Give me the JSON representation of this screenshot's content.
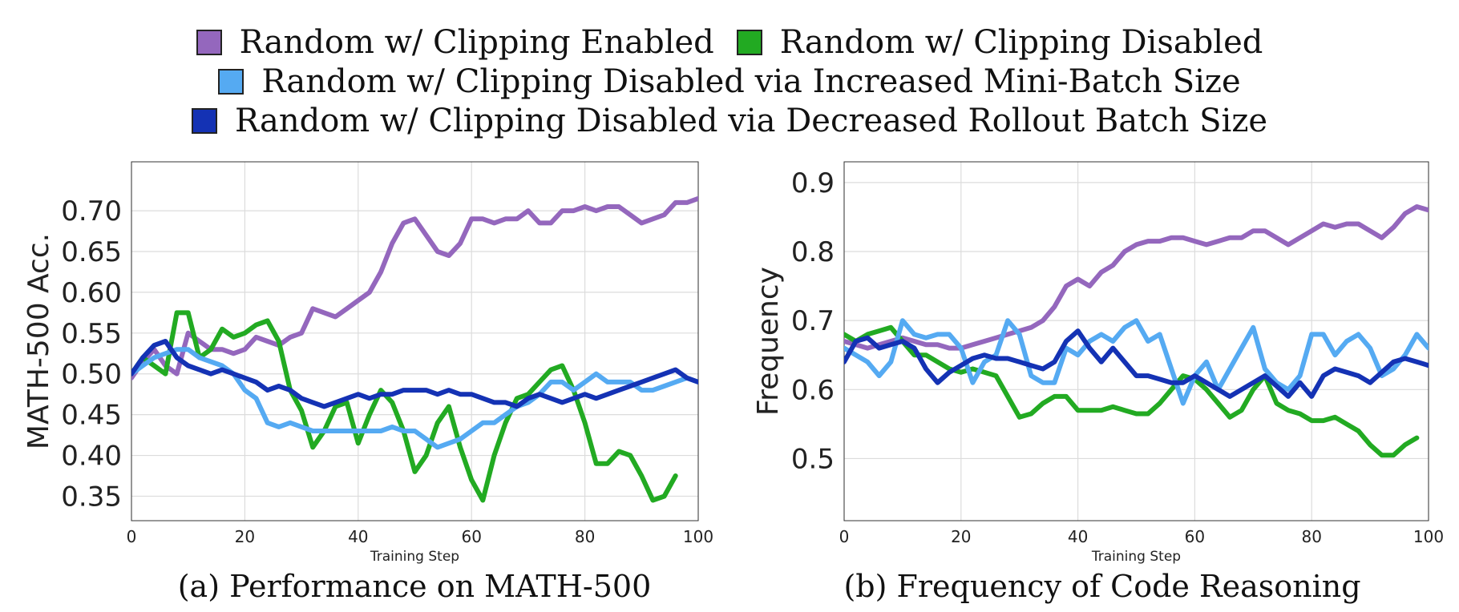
{
  "legend": [
    {
      "label": "Random w/ Clipping Enabled",
      "color": "#9467bd"
    },
    {
      "label": "Random w/ Clipping Disabled",
      "color": "#22aa22"
    },
    {
      "label": "Random w/ Clipping Disabled via Increased Mini-Batch Size",
      "color": "#55aaf2"
    },
    {
      "label": "Random w/ Clipping Disabled via Decreased Rollout Batch Size",
      "color": "#1432b4"
    }
  ],
  "captions": {
    "a": "(a) Performance on MATH-500",
    "b": "(b) Frequency of Code Reasoning"
  },
  "chart_data": [
    {
      "type": "line",
      "xlabel": "Training Step",
      "ylabel": "MATH-500 Acc.",
      "xlim": [
        0,
        100
      ],
      "ylim": [
        0.32,
        0.76
      ],
      "xticks": [
        0,
        20,
        40,
        60,
        80,
        100
      ],
      "yticks": [
        0.35,
        0.4,
        0.45,
        0.5,
        0.55,
        0.6,
        0.65,
        0.7
      ],
      "ytick_labels": [
        "0.35",
        "0.40",
        "0.45",
        "0.50",
        "0.55",
        "0.60",
        "0.65",
        "0.70"
      ],
      "grid": true,
      "series": [
        {
          "name": "Random w/ Clipping Enabled",
          "color": "#9467bd",
          "x": [
            0,
            2,
            4,
            6,
            8,
            10,
            12,
            14,
            16,
            18,
            20,
            22,
            24,
            26,
            28,
            30,
            32,
            34,
            36,
            38,
            40,
            42,
            44,
            46,
            48,
            50,
            52,
            54,
            56,
            58,
            60,
            62,
            64,
            66,
            68,
            70,
            72,
            74,
            76,
            78,
            80,
            82,
            84,
            86,
            88,
            90,
            92,
            94,
            96,
            98,
            100
          ],
          "values": [
            0.495,
            0.515,
            0.53,
            0.51,
            0.5,
            0.55,
            0.54,
            0.53,
            0.53,
            0.525,
            0.53,
            0.545,
            0.54,
            0.535,
            0.545,
            0.55,
            0.58,
            0.575,
            0.57,
            0.58,
            0.59,
            0.6,
            0.625,
            0.66,
            0.685,
            0.69,
            0.67,
            0.65,
            0.645,
            0.66,
            0.69,
            0.69,
            0.685,
            0.69,
            0.69,
            0.7,
            0.685,
            0.685,
            0.7,
            0.7,
            0.705,
            0.7,
            0.705,
            0.705,
            0.695,
            0.685,
            0.69,
            0.695,
            0.71,
            0.71,
            0.715
          ]
        },
        {
          "name": "Random w/ Clipping Disabled",
          "color": "#22aa22",
          "x": [
            0,
            2,
            4,
            6,
            8,
            10,
            12,
            14,
            16,
            18,
            20,
            22,
            24,
            26,
            28,
            30,
            32,
            34,
            36,
            38,
            40,
            42,
            44,
            46,
            48,
            50,
            52,
            54,
            56,
            58,
            60,
            62,
            64,
            66,
            68,
            70,
            72,
            74,
            76,
            78,
            80,
            82,
            84,
            86,
            88,
            90,
            92,
            94,
            96
          ],
          "values": [
            0.5,
            0.52,
            0.51,
            0.5,
            0.575,
            0.575,
            0.52,
            0.53,
            0.555,
            0.545,
            0.55,
            0.56,
            0.565,
            0.54,
            0.48,
            0.455,
            0.41,
            0.43,
            0.46,
            0.465,
            0.415,
            0.45,
            0.48,
            0.465,
            0.43,
            0.38,
            0.4,
            0.44,
            0.46,
            0.41,
            0.37,
            0.345,
            0.4,
            0.44,
            0.47,
            0.475,
            0.49,
            0.505,
            0.51,
            0.48,
            0.44,
            0.39,
            0.39,
            0.405,
            0.4,
            0.375,
            0.345,
            0.35,
            0.375
          ]
        },
        {
          "name": "Random w/ Clipping Disabled via Increased Mini-Batch Size",
          "color": "#55aaf2",
          "x": [
            0,
            2,
            4,
            6,
            8,
            10,
            12,
            14,
            16,
            18,
            20,
            22,
            24,
            26,
            28,
            30,
            32,
            34,
            36,
            38,
            40,
            42,
            44,
            46,
            48,
            50,
            52,
            54,
            56,
            58,
            60,
            62,
            64,
            66,
            68,
            70,
            72,
            74,
            76,
            78,
            80,
            82,
            84,
            86,
            88,
            90,
            92,
            94,
            96,
            98,
            100
          ],
          "values": [
            0.5,
            0.51,
            0.52,
            0.525,
            0.53,
            0.53,
            0.52,
            0.515,
            0.51,
            0.5,
            0.48,
            0.47,
            0.44,
            0.435,
            0.44,
            0.435,
            0.43,
            0.43,
            0.43,
            0.43,
            0.43,
            0.43,
            0.43,
            0.435,
            0.43,
            0.43,
            0.42,
            0.41,
            0.415,
            0.42,
            0.43,
            0.44,
            0.44,
            0.45,
            0.46,
            0.465,
            0.475,
            0.49,
            0.49,
            0.48,
            0.49,
            0.5,
            0.49,
            0.49,
            0.49,
            0.48,
            0.48,
            0.485,
            0.49,
            0.495,
            0.49
          ]
        },
        {
          "name": "Random w/ Clipping Disabled via Decreased Rollout Batch Size",
          "color": "#1432b4",
          "x": [
            0,
            2,
            4,
            6,
            8,
            10,
            12,
            14,
            16,
            18,
            20,
            22,
            24,
            26,
            28,
            30,
            32,
            34,
            36,
            38,
            40,
            42,
            44,
            46,
            48,
            50,
            52,
            54,
            56,
            58,
            60,
            62,
            64,
            66,
            68,
            70,
            72,
            74,
            76,
            78,
            80,
            82,
            84,
            86,
            88,
            90,
            92,
            94,
            96,
            98,
            100
          ],
          "values": [
            0.5,
            0.52,
            0.535,
            0.54,
            0.52,
            0.51,
            0.505,
            0.5,
            0.505,
            0.5,
            0.495,
            0.49,
            0.48,
            0.485,
            0.48,
            0.47,
            0.465,
            0.46,
            0.465,
            0.47,
            0.475,
            0.47,
            0.475,
            0.475,
            0.48,
            0.48,
            0.48,
            0.475,
            0.48,
            0.475,
            0.475,
            0.47,
            0.465,
            0.465,
            0.46,
            0.47,
            0.475,
            0.47,
            0.465,
            0.47,
            0.475,
            0.47,
            0.475,
            0.48,
            0.485,
            0.49,
            0.495,
            0.5,
            0.505,
            0.495,
            0.49
          ]
        }
      ]
    },
    {
      "type": "line",
      "xlabel": "Training Step",
      "ylabel": "Frequency",
      "xlim": [
        0,
        100
      ],
      "ylim": [
        0.41,
        0.93
      ],
      "xticks": [
        0,
        20,
        40,
        60,
        80,
        100
      ],
      "yticks": [
        0.5,
        0.6,
        0.7,
        0.8,
        0.9
      ],
      "ytick_labels": [
        "0.5",
        "0.6",
        "0.7",
        "0.8",
        "0.9"
      ],
      "grid": true,
      "series": [
        {
          "name": "Random w/ Clipping Enabled",
          "color": "#9467bd",
          "x": [
            0,
            2,
            4,
            6,
            8,
            10,
            12,
            14,
            16,
            18,
            20,
            22,
            24,
            26,
            28,
            30,
            32,
            34,
            36,
            38,
            40,
            42,
            44,
            46,
            48,
            50,
            52,
            54,
            56,
            58,
            60,
            62,
            64,
            66,
            68,
            70,
            72,
            74,
            76,
            78,
            80,
            82,
            84,
            86,
            88,
            90,
            92,
            94,
            96,
            98,
            100
          ],
          "values": [
            0.67,
            0.665,
            0.66,
            0.665,
            0.67,
            0.675,
            0.67,
            0.665,
            0.665,
            0.66,
            0.66,
            0.665,
            0.67,
            0.675,
            0.68,
            0.685,
            0.69,
            0.7,
            0.72,
            0.75,
            0.76,
            0.75,
            0.77,
            0.78,
            0.8,
            0.81,
            0.815,
            0.815,
            0.82,
            0.82,
            0.815,
            0.81,
            0.815,
            0.82,
            0.82,
            0.83,
            0.83,
            0.82,
            0.81,
            0.82,
            0.83,
            0.84,
            0.835,
            0.84,
            0.84,
            0.83,
            0.82,
            0.835,
            0.855,
            0.865,
            0.86
          ]
        },
        {
          "name": "Random w/ Clipping Disabled",
          "color": "#22aa22",
          "x": [
            0,
            2,
            4,
            6,
            8,
            10,
            12,
            14,
            16,
            18,
            20,
            22,
            24,
            26,
            28,
            30,
            32,
            34,
            36,
            38,
            40,
            42,
            44,
            46,
            48,
            50,
            52,
            54,
            56,
            58,
            60,
            62,
            64,
            66,
            68,
            70,
            72,
            74,
            76,
            78,
            80,
            82,
            84,
            86,
            88,
            90,
            92,
            94,
            96,
            98
          ],
          "values": [
            0.68,
            0.67,
            0.68,
            0.685,
            0.69,
            0.67,
            0.65,
            0.65,
            0.64,
            0.63,
            0.625,
            0.63,
            0.625,
            0.62,
            0.59,
            0.56,
            0.565,
            0.58,
            0.59,
            0.59,
            0.57,
            0.57,
            0.57,
            0.575,
            0.57,
            0.565,
            0.565,
            0.58,
            0.6,
            0.62,
            0.615,
            0.6,
            0.58,
            0.56,
            0.57,
            0.6,
            0.62,
            0.58,
            0.57,
            0.565,
            0.555,
            0.555,
            0.56,
            0.55,
            0.54,
            0.52,
            0.505,
            0.505,
            0.52,
            0.53
          ]
        },
        {
          "name": "Random w/ Clipping Disabled via Increased Mini-Batch Size",
          "color": "#55aaf2",
          "x": [
            0,
            2,
            4,
            6,
            8,
            10,
            12,
            14,
            16,
            18,
            20,
            22,
            24,
            26,
            28,
            30,
            32,
            34,
            36,
            38,
            40,
            42,
            44,
            46,
            48,
            50,
            52,
            54,
            56,
            58,
            60,
            62,
            64,
            66,
            68,
            70,
            72,
            74,
            76,
            78,
            80,
            82,
            84,
            86,
            88,
            90,
            92,
            94,
            96,
            98,
            100
          ],
          "values": [
            0.66,
            0.65,
            0.64,
            0.62,
            0.64,
            0.7,
            0.68,
            0.675,
            0.68,
            0.68,
            0.66,
            0.61,
            0.64,
            0.65,
            0.7,
            0.68,
            0.62,
            0.61,
            0.61,
            0.66,
            0.65,
            0.67,
            0.68,
            0.67,
            0.69,
            0.7,
            0.67,
            0.68,
            0.63,
            0.58,
            0.62,
            0.64,
            0.6,
            0.63,
            0.66,
            0.69,
            0.63,
            0.61,
            0.6,
            0.62,
            0.68,
            0.68,
            0.65,
            0.67,
            0.68,
            0.66,
            0.62,
            0.63,
            0.65,
            0.68,
            0.66
          ]
        },
        {
          "name": "Random w/ Clipping Disabled via Decreased Rollout Batch Size",
          "color": "#1432b4",
          "x": [
            0,
            2,
            4,
            6,
            8,
            10,
            12,
            14,
            16,
            18,
            20,
            22,
            24,
            26,
            28,
            30,
            32,
            34,
            36,
            38,
            40,
            42,
            44,
            46,
            48,
            50,
            52,
            54,
            56,
            58,
            60,
            62,
            64,
            66,
            68,
            70,
            72,
            74,
            76,
            78,
            80,
            82,
            84,
            86,
            88,
            90,
            92,
            94,
            96,
            98,
            100
          ],
          "values": [
            0.64,
            0.67,
            0.675,
            0.66,
            0.665,
            0.67,
            0.66,
            0.63,
            0.61,
            0.625,
            0.635,
            0.645,
            0.65,
            0.645,
            0.645,
            0.64,
            0.635,
            0.63,
            0.64,
            0.67,
            0.685,
            0.66,
            0.64,
            0.66,
            0.64,
            0.62,
            0.62,
            0.615,
            0.61,
            0.61,
            0.62,
            0.61,
            0.6,
            0.59,
            0.6,
            0.61,
            0.62,
            0.605,
            0.59,
            0.61,
            0.59,
            0.62,
            0.63,
            0.625,
            0.62,
            0.61,
            0.625,
            0.64,
            0.645,
            0.64,
            0.635
          ]
        }
      ]
    }
  ]
}
